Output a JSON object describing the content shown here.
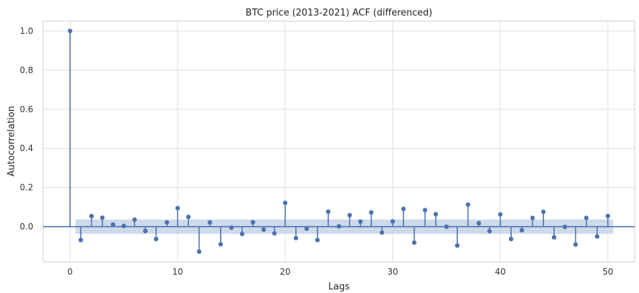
{
  "chart_data": {
    "type": "stem",
    "title": "BTC price (2013-2021) ACF (differenced)",
    "xlabel": "Lags",
    "ylabel": "Autocorrelation",
    "xlim": [
      -2.5,
      52.5
    ],
    "ylim": [
      -0.18,
      1.05
    ],
    "xticks": [
      0,
      10,
      20,
      30,
      40,
      50
    ],
    "yticks": [
      0.0,
      0.2,
      0.4,
      0.6,
      0.8,
      1.0
    ],
    "ytick_labels": [
      "0.0",
      "0.2",
      "0.4",
      "0.6",
      "0.8",
      "1.0"
    ],
    "grid": true,
    "confidence_band": {
      "lower": -0.037,
      "upper": 0.037,
      "from_lag": 0.5,
      "to_lag": 50.5
    },
    "lags": [
      0,
      1,
      2,
      3,
      4,
      5,
      6,
      7,
      8,
      9,
      10,
      11,
      12,
      13,
      14,
      15,
      16,
      17,
      18,
      19,
      20,
      21,
      22,
      23,
      24,
      25,
      26,
      27,
      28,
      29,
      30,
      31,
      32,
      33,
      34,
      35,
      36,
      37,
      38,
      39,
      40,
      41,
      42,
      43,
      44,
      45,
      46,
      47,
      48,
      49,
      50
    ],
    "values": [
      1.0,
      -0.068,
      0.054,
      0.046,
      0.011,
      0.004,
      0.036,
      -0.022,
      -0.063,
      0.022,
      0.095,
      0.05,
      -0.127,
      0.022,
      -0.09,
      -0.005,
      -0.037,
      0.023,
      -0.015,
      -0.034,
      0.122,
      -0.058,
      -0.01,
      -0.068,
      0.077,
      0.002,
      0.059,
      0.026,
      0.073,
      -0.03,
      0.027,
      0.091,
      -0.081,
      0.085,
      0.064,
      0.0,
      -0.096,
      0.113,
      0.018,
      -0.023,
      0.063,
      -0.063,
      -0.018,
      0.045,
      0.076,
      -0.054,
      -0.001,
      -0.091,
      0.045,
      -0.05,
      0.055
    ],
    "colors": {
      "stem": "#4c72b0",
      "band": "#c6d3e8",
      "grid": "#dcdcdc",
      "spine": "#cccccc",
      "zero_line": "#4c72b0"
    }
  }
}
